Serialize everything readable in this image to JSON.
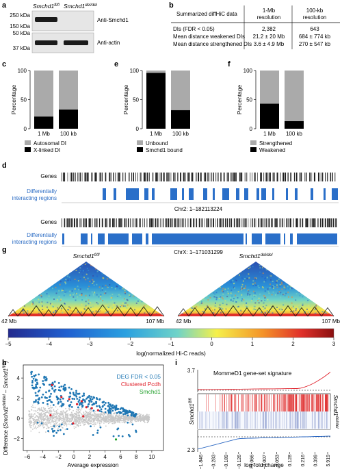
{
  "panels": {
    "a": "a",
    "b": "b",
    "c": "c",
    "d": "d",
    "e": "e",
    "f": "f",
    "g": "g",
    "h": "h",
    "i": "i"
  },
  "a": {
    "col1": "Smchd1",
    "col1_sup": "fl/fl",
    "col2": "Smchd1",
    "col2_sup": "del/del",
    "mw": [
      "250 kDa",
      "150 kDa",
      "50 kDa",
      "37 kDa"
    ],
    "labels": [
      "Anti-Smchd1",
      "Anti-actin"
    ]
  },
  "b": {
    "header": [
      "Summarized diffHiC data",
      "1-Mb resolution",
      "100-kb resolution"
    ],
    "header_lines": [
      [
        "Summarized diffHiC data"
      ],
      [
        "1-Mb",
        "resolution"
      ],
      [
        "100-kb",
        "resolution"
      ]
    ],
    "rows": [
      [
        "DIs (FDR < 0.05)",
        "2,382",
        "643"
      ],
      [
        "Mean distance weakened DIs",
        "21.2 ± 20 Mb",
        "684 ± 774 kb"
      ],
      [
        "Mean distance strengthened DIs",
        "3.6 ± 4.9 Mb",
        "270 ± 547 kb"
      ]
    ]
  },
  "chart_data": [
    {
      "type": "bar",
      "panel": "c",
      "categories": [
        "1 Mb",
        "100 kb"
      ],
      "series": [
        {
          "name": "Autosomal DI",
          "values": [
            79,
            67
          ],
          "color": "#aaaaaa"
        },
        {
          "name": "X-linked DI",
          "values": [
            21,
            33
          ],
          "color": "#000000"
        }
      ],
      "ylabel": "Percentage",
      "ylim": [
        0,
        100
      ],
      "yticks": [
        "0",
        "50",
        "100"
      ],
      "stacked": true,
      "legend": "bottom"
    },
    {
      "type": "bar",
      "panel": "e",
      "categories": [
        "1 Mb",
        "100 kb"
      ],
      "series": [
        {
          "name": "Unbound",
          "values": [
            4,
            68
          ],
          "color": "#aaaaaa"
        },
        {
          "name": "Smchd1 bound",
          "values": [
            96,
            32
          ],
          "color": "#000000"
        }
      ],
      "ylabel": "Percentage",
      "ylim": [
        0,
        100
      ],
      "yticks": [
        "0",
        "50",
        "100"
      ],
      "stacked": true,
      "legend": "bottom"
    },
    {
      "type": "bar",
      "panel": "f",
      "categories": [
        "1 Mb",
        "100 kb"
      ],
      "series": [
        {
          "name": "Strengthened",
          "values": [
            57,
            87
          ],
          "color": "#aaaaaa"
        },
        {
          "name": "Weakened",
          "values": [
            43,
            13
          ],
          "color": "#000000"
        }
      ],
      "ylabel": "Percentage",
      "ylim": [
        0,
        100
      ],
      "yticks": [
        "0",
        "50",
        "100"
      ],
      "stacked": true,
      "legend": "bottom"
    },
    {
      "type": "scatter",
      "panel": "h",
      "xlabel": "Average expression",
      "ylabel": "Difference (Smchd1 del/del − Smchd1 fl/fl)",
      "xlim": [
        -6.5,
        11.5
      ],
      "ylim": [
        -3.2,
        5.3
      ],
      "xticks": [
        "−6",
        "−4",
        "−2",
        "0",
        "2",
        "4",
        "6",
        "8",
        "10"
      ],
      "yticks": [
        "−2",
        "0",
        "2",
        "4"
      ],
      "legend": "top-right",
      "series": [
        {
          "name": "DEG FDR < 0.05",
          "color": "#1f77b4"
        },
        {
          "name": "Clustered Pcdh",
          "color": "#e0202a"
        },
        {
          "name": "Smchd1",
          "color": "#22a02c"
        }
      ]
    },
    {
      "type": "line",
      "panel": "i",
      "title": "MommeD1 gene-set signature",
      "xlabel": "log fold change",
      "xticks": [
        "−1.846",
        "−0.283",
        "−0.189",
        "−0.126",
        "−0.066",
        "−0.007",
        "0.053",
        "0.128",
        "0.216",
        "0.399",
        "5.919"
      ],
      "top_axis_label": "3.7",
      "bottom_axis_label": "2.3",
      "left_label": "Smchd1",
      "left_label_sup": "fl/fl",
      "right_label": "Smchd1",
      "right_label_sup": "del/del",
      "series": [
        {
          "name": "up",
          "color": "#e0202a"
        },
        {
          "name": "down",
          "color": "#1f5fbf"
        }
      ]
    }
  ],
  "d": {
    "genes_label": "Genes",
    "dir_label_1": "Differentially",
    "dir_label_2": "interacting regions",
    "chr2": "Chr2: 1–182113224",
    "chrX": "ChrX: 1–171031299"
  },
  "g": {
    "left_title": "Smchd1",
    "left_sup": "fl/fl",
    "right_title": "Smchd1",
    "right_sup": "del/del",
    "left_start": "42 Mb",
    "left_end": "107 Mb",
    "right_start": "42 Mb",
    "right_end": "107 Mb",
    "colorbar_ticks": [
      "−5",
      "−4",
      "−3",
      "−2",
      "−1",
      "0",
      "1",
      "2",
      "3"
    ],
    "colorbar_label": "log(normalized Hi-C reads)"
  }
}
